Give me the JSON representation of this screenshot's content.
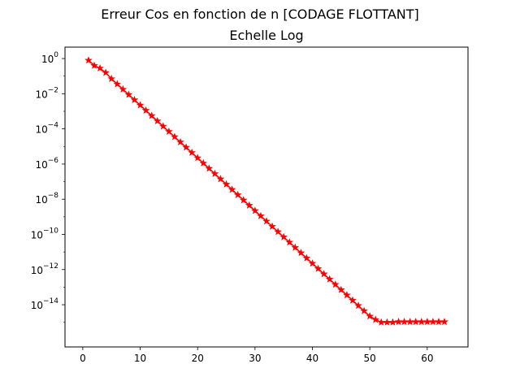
{
  "chart_data": {
    "type": "line",
    "title": "Erreur Cos en fonction de n [CODAGE FLOTTANT]",
    "subtitle": "Echelle Log",
    "xlabel": "",
    "ylabel": "",
    "yscale": "log",
    "xlim": [
      -3.1,
      67.1
    ],
    "ylim_log10": [
      -16.4,
      0.65
    ],
    "grid": false,
    "xticks": [
      0,
      10,
      20,
      30,
      40,
      50,
      60
    ],
    "yticks": [
      {
        "base": "10",
        "exp": "0",
        "value": 1
      },
      {
        "base": "10",
        "exp": "−2",
        "value": 0.01
      },
      {
        "base": "10",
        "exp": "−4",
        "value": 0.0001
      },
      {
        "base": "10",
        "exp": "−6",
        "value": 1e-06
      },
      {
        "base": "10",
        "exp": "−8",
        "value": 1e-08
      },
      {
        "base": "10",
        "exp": "−10",
        "value": 1e-10
      },
      {
        "base": "10",
        "exp": "−12",
        "value": 1e-12
      },
      {
        "base": "10",
        "exp": "−14",
        "value": 1e-14
      }
    ],
    "series": [
      {
        "color": "#ff0000",
        "line_color": "#ff0000",
        "marker": "star",
        "x": [
          1,
          2,
          3,
          4,
          5,
          6,
          7,
          8,
          9,
          10,
          11,
          12,
          13,
          14,
          15,
          16,
          17,
          18,
          19,
          20,
          21,
          22,
          23,
          24,
          25,
          26,
          27,
          28,
          29,
          30,
          31,
          32,
          33,
          34,
          35,
          36,
          37,
          38,
          39,
          40,
          41,
          42,
          43,
          44,
          45,
          46,
          47,
          48,
          49,
          50,
          51,
          52,
          53,
          54,
          55,
          56,
          57,
          58,
          59,
          60,
          61,
          62,
          63
        ],
        "log10_y": [
          -0.1,
          -0.4,
          -0.55,
          -0.8,
          -1.15,
          -1.45,
          -1.75,
          -2.05,
          -2.35,
          -2.65,
          -2.95,
          -3.25,
          -3.55,
          -3.85,
          -4.15,
          -4.45,
          -4.75,
          -5.05,
          -5.35,
          -5.65,
          -5.95,
          -6.25,
          -6.55,
          -6.85,
          -7.15,
          -7.45,
          -7.75,
          -8.05,
          -8.35,
          -8.65,
          -8.95,
          -9.25,
          -9.55,
          -9.85,
          -10.15,
          -10.45,
          -10.75,
          -11.05,
          -11.35,
          -11.65,
          -11.95,
          -12.25,
          -12.55,
          -12.85,
          -13.15,
          -13.45,
          -13.75,
          -14.05,
          -14.35,
          -14.65,
          -14.85,
          -15.0,
          -15.0,
          -15.0,
          -14.97,
          -14.97,
          -14.97,
          -14.97,
          -14.97,
          -14.97,
          -14.97,
          -14.97,
          -14.97
        ]
      }
    ]
  }
}
